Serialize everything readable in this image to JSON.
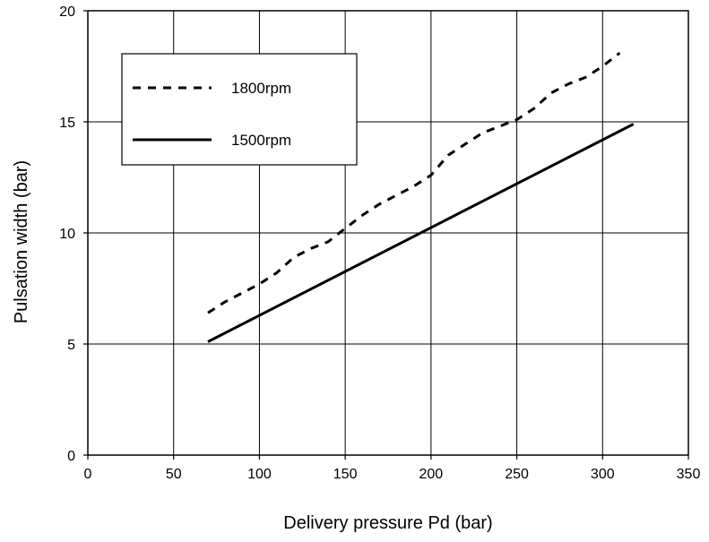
{
  "chart_data": {
    "type": "line",
    "title": "",
    "xlabel": "Delivery pressure Pd (bar)",
    "ylabel": "Pulsation width (bar)",
    "xlim": [
      0,
      350
    ],
    "ylim": [
      0,
      20
    ],
    "xticks": [
      0,
      50,
      100,
      150,
      200,
      250,
      300,
      350
    ],
    "yticks": [
      0,
      5,
      10,
      15,
      20
    ],
    "grid": true,
    "legend_position": "top-left",
    "series": [
      {
        "name": "1800rpm",
        "style": "dashed",
        "color": "#000000",
        "x": [
          70,
          80,
          90,
          100,
          110,
          120,
          130,
          140,
          150,
          160,
          170,
          180,
          190,
          200,
          210,
          220,
          230,
          240,
          250,
          260,
          270,
          280,
          290,
          300,
          310
        ],
        "y": [
          6.4,
          6.9,
          7.3,
          7.7,
          8.2,
          8.9,
          9.3,
          9.6,
          10.2,
          10.8,
          11.3,
          11.7,
          12.1,
          12.6,
          13.5,
          14.0,
          14.5,
          14.8,
          15.1,
          15.6,
          16.3,
          16.7,
          17.0,
          17.5,
          18.1
        ]
      },
      {
        "name": "1500rpm",
        "style": "solid",
        "color": "#000000",
        "x": [
          70,
          318
        ],
        "y": [
          5.1,
          14.9
        ]
      }
    ]
  }
}
